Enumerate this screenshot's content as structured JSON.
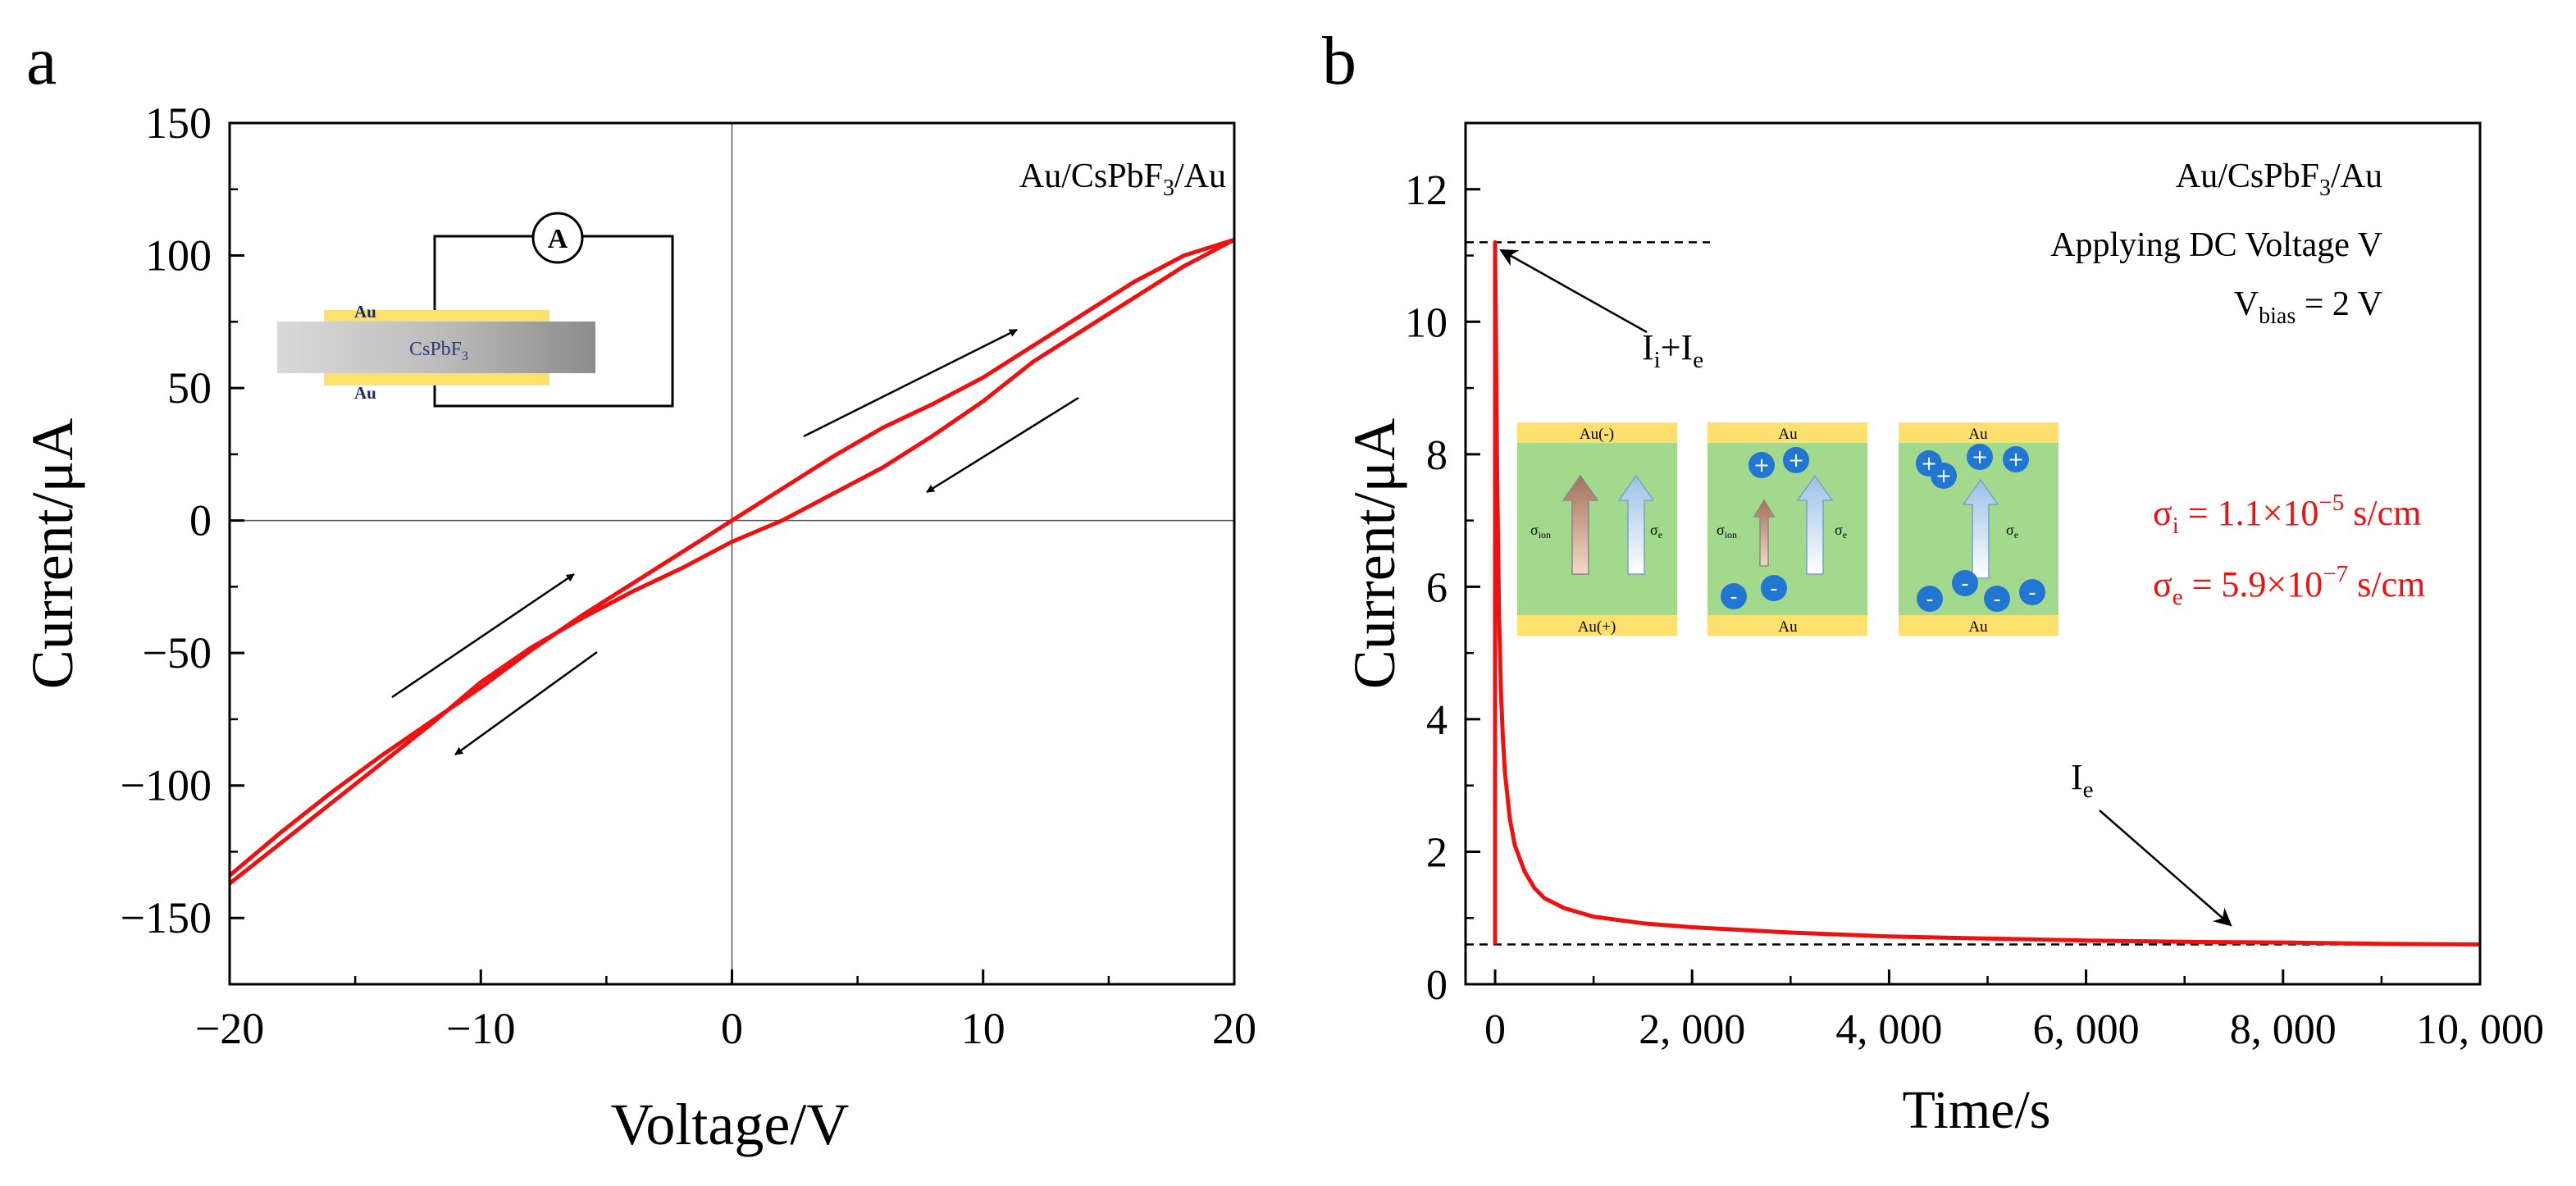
{
  "chart_data": [
    {
      "panel_label": "a",
      "type": "line",
      "xlabel": "Voltage/V",
      "ylabel": "Current/μA",
      "xlim": [
        -20,
        20
      ],
      "ylim": [
        -175,
        150
      ],
      "xticks": [
        -20,
        -10,
        0,
        10,
        20
      ],
      "yticks": [
        150,
        100,
        50,
        0,
        -50,
        -100,
        -150
      ],
      "xtick_labels": [
        "−20",
        "−10",
        "0",
        "10",
        "20"
      ],
      "ytick_labels": [
        "150",
        "100",
        "50",
        "0",
        "−50",
        "−100",
        "−150"
      ],
      "annotation": {
        "main": "Au/CsPbF",
        "sub": "3",
        "tail": "/Au"
      },
      "color": "#ee1111",
      "series": [
        {
          "x": [
            -20,
            -18,
            -16,
            -14,
            -12,
            -10,
            -8,
            -6,
            -4,
            -2,
            0,
            2,
            4,
            6,
            8,
            10,
            12,
            14,
            16,
            18,
            20
          ],
          "y": [
            -134,
            -118,
            -103,
            -89,
            -76,
            -63,
            -49,
            -36,
            -24,
            -12,
            0,
            12,
            24,
            35,
            44,
            54,
            66,
            78,
            90,
            100,
            106
          ]
        },
        {
          "x": [
            20,
            18,
            16,
            14,
            12,
            10,
            8,
            6,
            4,
            2,
            0,
            -2,
            -4,
            -6,
            -8,
            -10,
            -12,
            -14,
            -16,
            -18,
            -20
          ],
          "y": [
            106,
            96,
            84,
            72,
            60,
            45,
            32,
            20,
            10,
            0,
            -8,
            -18,
            -27,
            -37,
            -48,
            -61,
            -77,
            -92,
            -107,
            -122,
            -137
          ]
        }
      ],
      "inset": {
        "electrode_top": "Au",
        "electrode_bottom": "Au",
        "sample": {
          "main": "CsPbF",
          "sub": "3"
        },
        "meter": "A"
      }
    },
    {
      "panel_label": "b",
      "type": "line",
      "xlabel": "Time/s",
      "ylabel": "Current/μA",
      "xlim": [
        -300,
        10000
      ],
      "ylim": [
        0,
        13
      ],
      "xticks": [
        0,
        2000,
        4000,
        6000,
        8000,
        10000
      ],
      "yticks": [
        0,
        2,
        4,
        6,
        8,
        10,
        12
      ],
      "xtick_labels": [
        "0",
        "2, 000",
        "4, 000",
        "6, 000",
        "8, 000",
        "10, 000"
      ],
      "ytick_labels": [
        "0",
        "2",
        "4",
        "6",
        "8",
        "10",
        "12"
      ],
      "color": "#ee1111",
      "series": [
        {
          "x": [
            0,
            10,
            20,
            40,
            60,
            80,
            100,
            150,
            200,
            300,
            400,
            500,
            700,
            1000,
            1500,
            2000,
            2500,
            3000,
            3500,
            4000,
            5000,
            6000,
            7000,
            8000,
            9000,
            10000
          ],
          "y": [
            11.2,
            9.5,
            7.8,
            5.6,
            4.4,
            3.7,
            3.2,
            2.5,
            2.1,
            1.7,
            1.45,
            1.3,
            1.15,
            1.02,
            0.92,
            0.86,
            0.82,
            0.78,
            0.75,
            0.72,
            0.69,
            0.66,
            0.64,
            0.63,
            0.61,
            0.6
          ]
        }
      ],
      "text": {
        "sample": {
          "main": "Au/CsPbF",
          "sub": "3",
          "tail": "/Au"
        },
        "applying": "Applying DC Voltage V",
        "vbias": {
          "main": "V",
          "sub": "bias",
          "tail": " = 2 V"
        },
        "ii_ie": {
          "a": "I",
          "asub": "i",
          "b": "+I",
          "bsub": "e"
        },
        "ie": {
          "a": "I",
          "asub": "e"
        },
        "sigma_i": {
          "a": "σ",
          "asub": "i",
          "b": " = 1.1×10",
          "bsup": "−5",
          "c": " s/cm"
        },
        "sigma_e": {
          "a": "σ",
          "asub": "e",
          "b": " = 5.9×10",
          "bsup": "−7",
          "c": " s/cm"
        }
      },
      "schematics": [
        {
          "top": "Au(-)",
          "bottom": "Au(+)",
          "arrow_label_1": {
            "a": "σ",
            "sub": "ion"
          },
          "arrow_label_2": {
            "a": "σ",
            "sub": "e"
          }
        },
        {
          "top": "Au",
          "bottom": "Au",
          "arrow_label_1": {
            "a": "σ",
            "sub": "ion"
          },
          "arrow_label_2": {
            "a": "σ",
            "sub": "e"
          }
        },
        {
          "top": "Au",
          "bottom": "Au",
          "arrow_label_2": {
            "a": "σ",
            "sub": "e"
          }
        }
      ],
      "charges": {
        "plus": "+",
        "minus": "-"
      }
    }
  ]
}
